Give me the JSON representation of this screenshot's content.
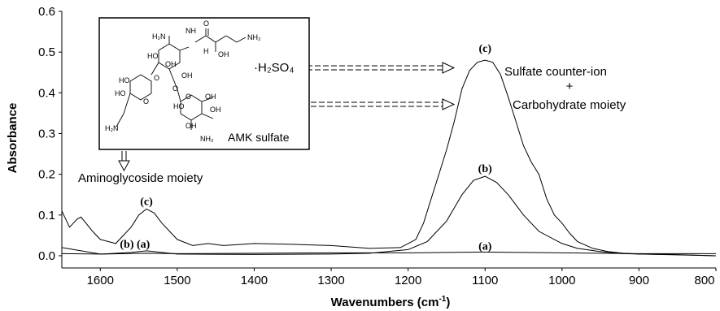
{
  "chart_data": {
    "type": "line",
    "title": "",
    "xlabel": "Wavenumbers (cm-1)",
    "xlabel_parts": {
      "main": "Wavenumbers (cm",
      "sup": "-1",
      "close": ")"
    },
    "ylabel": "Absorbance",
    "xlim": [
      1650,
      800
    ],
    "ylim": [
      -0.03,
      0.6
    ],
    "x_reversed": true,
    "grid": false,
    "x_ticks": [
      "1600",
      "1500",
      "1400",
      "1300",
      "1200",
      "1100",
      "1000",
      "900",
      "800"
    ],
    "y_ticks": [
      "0.0",
      "0.1",
      "0.2",
      "0.3",
      "0.4",
      "0.5",
      "0.6"
    ],
    "series": [
      {
        "name": "(a)",
        "x": [
          1650,
          1600,
          1540,
          1500,
          1400,
          1300,
          1200,
          1150,
          1100,
          1050,
          1000,
          950,
          900,
          850,
          800
        ],
        "y": [
          0.005,
          0.004,
          0.006,
          0.005,
          0.006,
          0.007,
          0.007,
          0.008,
          0.009,
          0.008,
          0.007,
          0.006,
          0.005,
          0.005,
          0.005
        ]
      },
      {
        "name": "(b)",
        "x": [
          1650,
          1600,
          1560,
          1540,
          1520,
          1500,
          1400,
          1300,
          1250,
          1200,
          1175,
          1150,
          1130,
          1115,
          1100,
          1085,
          1070,
          1050,
          1030,
          1000,
          980,
          950,
          920,
          900,
          850,
          800
        ],
        "y": [
          0.02,
          0.004,
          0.008,
          0.012,
          0.008,
          0.004,
          0.003,
          0.004,
          0.006,
          0.015,
          0.035,
          0.085,
          0.15,
          0.185,
          0.195,
          0.18,
          0.15,
          0.1,
          0.06,
          0.03,
          0.018,
          0.01,
          0.005,
          0.004,
          0.002,
          0.0
        ]
      },
      {
        "name": "(c)",
        "x": [
          1650,
          1640,
          1630,
          1625,
          1610,
          1600,
          1580,
          1560,
          1550,
          1540,
          1530,
          1520,
          1500,
          1480,
          1460,
          1440,
          1400,
          1350,
          1300,
          1250,
          1210,
          1190,
          1180,
          1170,
          1160,
          1150,
          1140,
          1130,
          1120,
          1110,
          1100,
          1090,
          1080,
          1070,
          1060,
          1050,
          1040,
          1030,
          1020,
          1010,
          1000,
          990,
          980,
          960,
          940,
          920,
          900,
          860,
          840,
          800
        ],
        "y": [
          0.11,
          0.07,
          0.09,
          0.095,
          0.06,
          0.04,
          0.03,
          0.07,
          0.1,
          0.115,
          0.105,
          0.08,
          0.04,
          0.025,
          0.03,
          0.025,
          0.03,
          0.028,
          0.025,
          0.018,
          0.02,
          0.04,
          0.08,
          0.14,
          0.2,
          0.26,
          0.33,
          0.41,
          0.455,
          0.475,
          0.48,
          0.475,
          0.445,
          0.39,
          0.33,
          0.27,
          0.23,
          0.2,
          0.14,
          0.1,
          0.08,
          0.055,
          0.035,
          0.018,
          0.01,
          0.006,
          0.004,
          0.003,
          0.002,
          0.0
        ]
      }
    ],
    "labels": [
      {
        "text": "(c)",
        "x": 1540,
        "y": 0.125
      },
      {
        "text": "(b) (a)",
        "x": 1555,
        "y": 0.02
      },
      {
        "text": "(c)",
        "x": 1100,
        "y": 0.5
      },
      {
        "text": "(b)",
        "x": 1100,
        "y": 0.205
      },
      {
        "text": "(a)",
        "x": 1100,
        "y": 0.015
      }
    ],
    "annotations": {
      "sulfate_line1": "Sulfate counter-ion",
      "plus": "+",
      "carbohydrate": "Carbohydrate moiety",
      "aminoglycoside": "Aminoglycoside moiety",
      "inset_caption": "AMK sulfate",
      "h2so4": "·H₂SO₄"
    },
    "inset_structure_labels": [
      "H2N",
      "NH2",
      "HO",
      "OH",
      "O",
      "NH",
      "H",
      "OH",
      "OH",
      "HO",
      "HO",
      "O",
      "OH",
      "O",
      "H2N",
      "O",
      "O",
      "OH",
      "HO",
      "OH",
      "NH2"
    ]
  }
}
